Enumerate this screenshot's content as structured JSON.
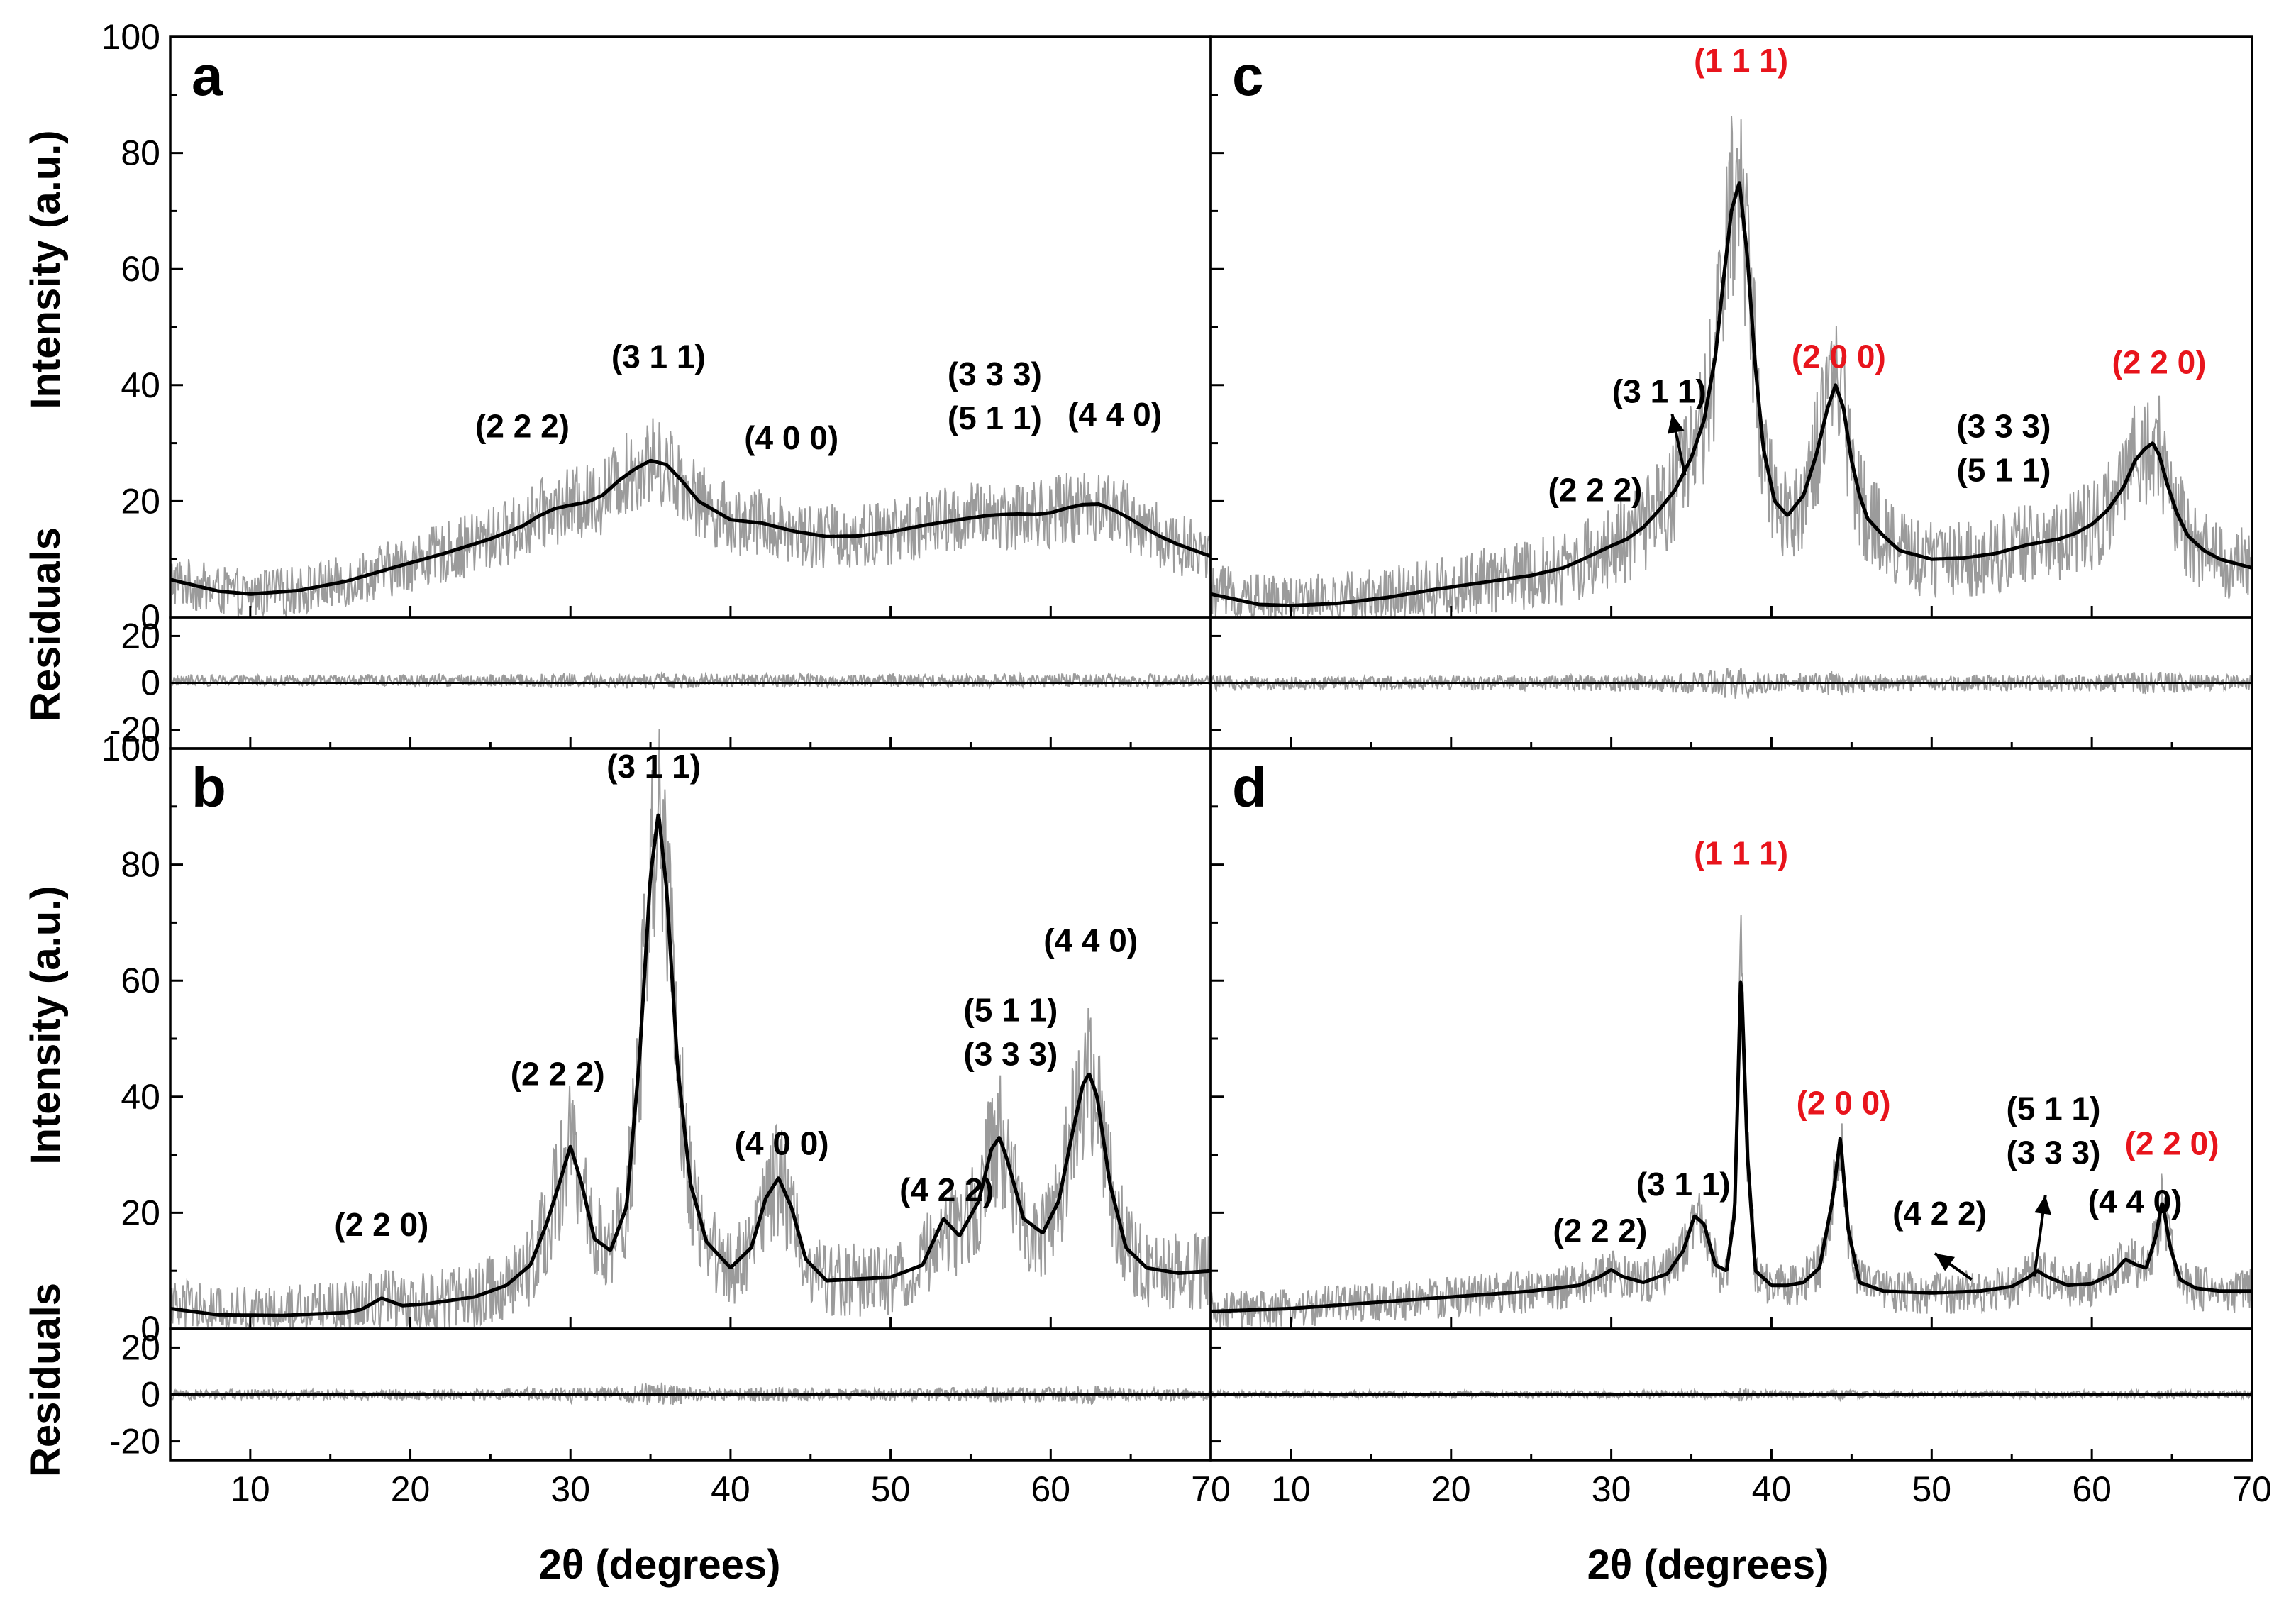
{
  "figure": {
    "x_title": "2θ (degrees)",
    "y_title_intensity": "Intensity (a.u.)",
    "y_title_residuals": "Residuals",
    "colors": {
      "observed": "#9b9b9b",
      "fit": "#000000",
      "red_label": "#e8141c",
      "axis": "#000000"
    }
  },
  "chart_data": [
    {
      "panel": "a",
      "type": "line",
      "title": "",
      "xlabel": "2θ (degrees)",
      "ylabel": "Intensity (a.u.)",
      "xlim": [
        5,
        70
      ],
      "ylim": [
        0,
        100
      ],
      "residual_ylim": [
        -28,
        28
      ],
      "x_ticks": [
        "10",
        "20",
        "30",
        "40",
        "50",
        "60",
        "70"
      ],
      "y_ticks": [
        "0",
        "20",
        "40",
        "60",
        "80",
        "100"
      ],
      "residual_ticks": [
        "20",
        "0",
        "-20"
      ],
      "series": [
        {
          "name": "fit",
          "x": [
            5,
            8,
            10,
            13,
            16,
            19,
            22,
            25,
            27,
            28,
            29,
            30,
            31,
            32,
            33,
            34,
            35,
            36,
            37,
            38,
            40,
            42,
            44,
            46,
            48,
            50,
            52,
            54,
            56,
            57,
            58,
            59,
            60,
            61,
            62,
            63,
            64,
            65,
            66,
            67,
            68,
            70
          ],
          "y": [
            6.5,
            4.5,
            4,
            4.6,
            6.2,
            8.6,
            10.9,
            13.5,
            15.7,
            17.4,
            18.7,
            19.3,
            19.8,
            21,
            23.5,
            25.5,
            27,
            26.3,
            23.4,
            20,
            16.8,
            16.2,
            14.8,
            13.9,
            14,
            14.7,
            15.8,
            16.7,
            17.5,
            17.7,
            17.8,
            17.7,
            18,
            18.8,
            19.4,
            19.5,
            18.4,
            16.9,
            15.2,
            13.7,
            12.5,
            10.5
          ],
          "noise": 6
        },
        {
          "name": "residuals",
          "constant": 1,
          "noise": 3
        }
      ],
      "labels": [
        {
          "lines": [
            "(2 2 2)"
          ],
          "x": 27,
          "y": 31,
          "color": "black"
        },
        {
          "lines": [
            "(3 1 1)"
          ],
          "x": 35.5,
          "y": 43,
          "color": "black"
        },
        {
          "lines": [
            "(4 0 0)"
          ],
          "x": 43.8,
          "y": 29,
          "color": "black"
        },
        {
          "lines": [
            "(3 3 3)",
            "(5 1 1)"
          ],
          "x": 56.5,
          "y": 40,
          "color": "black"
        },
        {
          "lines": [
            "(4 4 0)"
          ],
          "x": 64,
          "y": 33,
          "color": "black"
        }
      ]
    },
    {
      "panel": "b",
      "type": "line",
      "title": "",
      "xlabel": "2θ (degrees)",
      "ylabel": "Intensity (a.u.)",
      "xlim": [
        5,
        70
      ],
      "ylim": [
        0,
        100
      ],
      "residual_ylim": [
        -28,
        28
      ],
      "x_ticks": [
        "10",
        "20",
        "30",
        "40",
        "50",
        "60",
        "70"
      ],
      "y_ticks": [
        "0",
        "20",
        "40",
        "60",
        "80",
        "100"
      ],
      "residual_ticks": [
        "20",
        "0",
        "-20"
      ],
      "series": [
        {
          "name": "fit",
          "x": [
            5,
            8,
            12,
            16,
            17,
            18.2,
            19.5,
            21,
            24,
            26,
            27.5,
            28.5,
            29.3,
            30,
            30.7,
            31.5,
            32.5,
            33.5,
            34.3,
            35,
            35.5,
            36,
            36.7,
            37.5,
            38.5,
            40,
            41.3,
            42.2,
            43,
            43.8,
            44.7,
            46,
            48,
            50,
            52,
            53.3,
            54.3,
            55.5,
            56.3,
            56.8,
            57.3,
            58.3,
            59.5,
            60.5,
            61.3,
            62,
            62.4,
            62.9,
            63.7,
            64.7,
            66,
            68,
            70
          ],
          "y": [
            3.5,
            2.4,
            2.3,
            2.8,
            3.4,
            5.3,
            4,
            4.3,
            5.5,
            7.5,
            11,
            18,
            25,
            31.5,
            25,
            15.5,
            13.5,
            21,
            46,
            78,
            89,
            76,
            45,
            25,
            15,
            10.5,
            14,
            22.5,
            26,
            21,
            12,
            8.3,
            8.6,
            8.9,
            11,
            19,
            16,
            22,
            31,
            33,
            29,
            19,
            16.5,
            22,
            33,
            42,
            44,
            40,
            25,
            14,
            10.5,
            9.6,
            10
          ],
          "noise": 8
        },
        {
          "name": "residuals",
          "constant": 0,
          "noise": 3
        }
      ],
      "labels": [
        {
          "lines": [
            "(2 2 0)"
          ],
          "x": 18.2,
          "y": 16,
          "color": "black"
        },
        {
          "lines": [
            "(2 2 2)"
          ],
          "x": 29.2,
          "y": 42,
          "color": "black"
        },
        {
          "lines": [
            "(3 1 1)"
          ],
          "x": 35.2,
          "y": 95,
          "color": "black"
        },
        {
          "lines": [
            "(4 0 0)"
          ],
          "x": 43.2,
          "y": 30,
          "color": "black"
        },
        {
          "lines": [
            "(4 2 2)"
          ],
          "x": 53.5,
          "y": 22,
          "color": "black"
        },
        {
          "lines": [
            "(5 1 1)",
            "(3 3 3)"
          ],
          "x": 57.5,
          "y": 53,
          "color": "black"
        },
        {
          "lines": [
            "(4 4 0)"
          ],
          "x": 62.5,
          "y": 65,
          "color": "black"
        }
      ]
    },
    {
      "panel": "c",
      "type": "line",
      "title": "",
      "xlabel": "2θ (degrees)",
      "ylabel": "Intensity (a.u.)",
      "xlim": [
        5,
        70
      ],
      "ylim": [
        0,
        100
      ],
      "residual_ylim": [
        -28,
        28
      ],
      "x_ticks": [
        "10",
        "20",
        "30",
        "40",
        "50",
        "60",
        "70"
      ],
      "y_ticks": [
        "0",
        "20",
        "40",
        "60",
        "80",
        "100"
      ],
      "residual_ticks": [
        "20",
        "0",
        "-20"
      ],
      "series": [
        {
          "name": "fit",
          "x": [
            5,
            8,
            10,
            13,
            16,
            19,
            22,
            25,
            27,
            28,
            29,
            30,
            31,
            32,
            33,
            34,
            35,
            35.8,
            36.5,
            37,
            37.5,
            38,
            38.5,
            39,
            39.5,
            40.2,
            41,
            42,
            42.8,
            43.5,
            44,
            44.5,
            45,
            45.5,
            46,
            47,
            48,
            50,
            52,
            54,
            56,
            57,
            58,
            59,
            60,
            61,
            62,
            62.7,
            63.3,
            63.8,
            64.2,
            64.7,
            65.3,
            66,
            67,
            68,
            70
          ],
          "y": [
            4,
            2.2,
            2,
            2.4,
            3.4,
            4.8,
            6,
            7.2,
            8.5,
            9.7,
            11,
            12.3,
            13.5,
            15.5,
            18.5,
            22,
            27.5,
            34,
            45,
            58,
            70,
            75,
            62,
            43,
            29,
            20,
            17.5,
            21,
            28,
            36,
            40,
            36,
            27,
            21,
            17,
            14,
            11.5,
            10,
            10.2,
            11,
            12.5,
            13,
            13.5,
            14.5,
            16,
            18.5,
            22.5,
            27,
            29,
            30,
            28,
            23,
            18,
            14,
            11.5,
            10,
            8.5
          ],
          "noise": 8
        },
        {
          "name": "residuals",
          "constant": 0,
          "noise": 4
        }
      ],
      "labels": [
        {
          "lines": [
            "(1 1 1)"
          ],
          "x": 38.1,
          "y": 94,
          "color": "red"
        },
        {
          "lines": [
            "(2 0 0)"
          ],
          "x": 44.2,
          "y": 43,
          "color": "red"
        },
        {
          "lines": [
            "(2 2 0)"
          ],
          "x": 64.2,
          "y": 42,
          "color": "red"
        },
        {
          "lines": [
            "(3 1 1)"
          ],
          "x": 33,
          "y": 37,
          "color": "black"
        },
        {
          "lines": [
            "(2 2 2)"
          ],
          "x": 29,
          "y": 20,
          "color": "black"
        },
        {
          "lines": [
            "(3 3 3)",
            "(5 1 1)"
          ],
          "x": 54.5,
          "y": 31,
          "color": "black"
        }
      ]
    },
    {
      "panel": "d",
      "type": "line",
      "title": "",
      "xlabel": "2θ (degrees)",
      "ylabel": "Intensity (a.u.)",
      "xlim": [
        5,
        70
      ],
      "ylim": [
        0,
        100
      ],
      "residual_ylim": [
        -28,
        28
      ],
      "x_ticks": [
        "10",
        "20",
        "30",
        "40",
        "50",
        "60",
        "70"
      ],
      "y_ticks": [
        "0",
        "20",
        "40",
        "60",
        "80",
        "100"
      ],
      "residual_ticks": [
        "20",
        "0",
        "-20"
      ],
      "series": [
        {
          "name": "fit",
          "x": [
            5,
            10,
            15,
            20,
            25,
            28,
            29.3,
            30,
            30.7,
            32,
            33.5,
            34.5,
            35.2,
            35.8,
            36.5,
            37.2,
            37.7,
            38.1,
            38.5,
            39,
            40,
            41,
            42,
            43,
            43.8,
            44.3,
            44.8,
            45.5,
            47,
            50,
            53,
            55,
            56,
            56.6,
            57.2,
            58.5,
            60,
            61.3,
            62.1,
            62.8,
            63.4,
            64,
            64.4,
            64.9,
            65.5,
            66.5,
            68,
            70
          ],
          "y": [
            3,
            3.5,
            4.5,
            5.5,
            6.5,
            7.5,
            9,
            10.2,
            9,
            8,
            9.5,
            13.5,
            19.5,
            18,
            11,
            10,
            20,
            62,
            30,
            10,
            7.5,
            7.5,
            8,
            10.5,
            22,
            33,
            17,
            8,
            6.5,
            6.2,
            6.5,
            7.3,
            8.8,
            10,
            9,
            7.5,
            7.8,
            9.5,
            12,
            11,
            10.5,
            16,
            22,
            14,
            8.5,
            7,
            6.5,
            6.5
          ],
          "noise": 5
        },
        {
          "name": "residuals",
          "constant": 0,
          "noise": 2
        }
      ],
      "labels": [
        {
          "lines": [
            "(1 1 1)"
          ],
          "x": 38.1,
          "y": 80,
          "color": "red"
        },
        {
          "lines": [
            "(2 0 0)"
          ],
          "x": 44.5,
          "y": 37,
          "color": "red"
        },
        {
          "lines": [
            "(2 2 0)"
          ],
          "x": 65,
          "y": 30,
          "color": "red"
        },
        {
          "lines": [
            "(2 2 2)"
          ],
          "x": 29.3,
          "y": 15,
          "color": "black"
        },
        {
          "lines": [
            "(3 1 1)"
          ],
          "x": 34.5,
          "y": 23,
          "color": "black"
        },
        {
          "lines": [
            "(4 2 2)"
          ],
          "x": 50.5,
          "y": 18,
          "color": "black"
        },
        {
          "lines": [
            "(5 1 1)",
            "(3 3 3)"
          ],
          "x": 57.6,
          "y": 36,
          "color": "black"
        },
        {
          "lines": [
            "(4 4 0)"
          ],
          "x": 62.7,
          "y": 20,
          "color": "black"
        }
      ]
    }
  ]
}
